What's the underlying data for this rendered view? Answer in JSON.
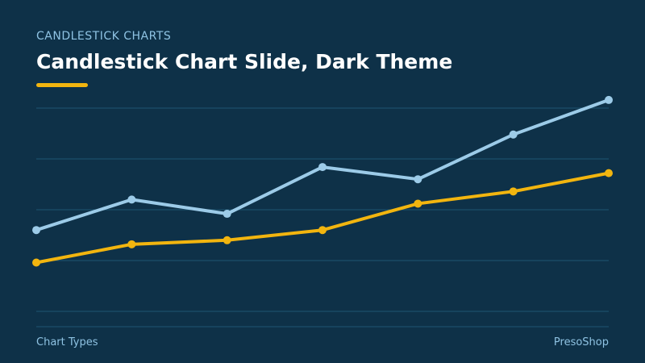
{
  "header": {
    "kicker": "CANDLESTICK CHARTS",
    "title": "Candlestick Chart Slide, Dark Theme"
  },
  "footer": {
    "left": "Chart Types",
    "right": "PresoShop"
  },
  "colors": {
    "background": "#0e3148",
    "gridline": "#1f5572",
    "accent": "#f2b50f",
    "series_light": "#9ccbe8",
    "series_gold": "#f2b50f",
    "text_muted": "#8fc3e3",
    "text_title": "#ffffff"
  },
  "chart_data": {
    "type": "line",
    "title": "",
    "xlabel": "",
    "ylabel": "",
    "x": [
      1,
      2,
      3,
      4,
      5,
      6,
      7
    ],
    "ylim": [
      0,
      100
    ],
    "grid": true,
    "gridlines": 5,
    "legend": "none",
    "series": [
      {
        "color": "#9ccbe8",
        "values": [
          40,
          55,
          48,
          71,
          65,
          87,
          104
        ]
      },
      {
        "color": "#f2b50f",
        "values": [
          24,
          33,
          35,
          40,
          53,
          59,
          68
        ]
      }
    ]
  }
}
